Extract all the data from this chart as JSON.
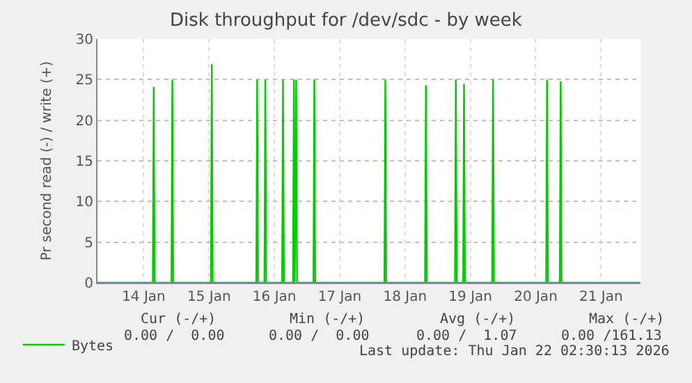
{
  "chart_data": {
    "type": "line",
    "title": "Disk throughput for /dev/sdc - by week",
    "ylabel": "Pr second read (-) / write (+)",
    "x": [
      "2026-01-13T19:00",
      "2026-01-14T15:20",
      "2026-01-14T15:40",
      "2026-01-14T16:00",
      "2026-01-14T22:10",
      "2026-01-14T22:30",
      "2026-01-14T22:50",
      "2026-01-15T12:40",
      "2026-01-15T13:00",
      "2026-01-15T13:20",
      "2026-01-16T05:20",
      "2026-01-16T05:40",
      "2026-01-16T06:00",
      "2026-01-16T08:20",
      "2026-01-16T08:40",
      "2026-01-16T09:00",
      "2026-01-16T14:50",
      "2026-01-16T15:10",
      "2026-01-16T15:30",
      "2026-01-16T18:50",
      "2026-01-16T19:10",
      "2026-01-16T19:30",
      "2026-01-16T20:00",
      "2026-01-16T20:20",
      "2026-01-17T02:20",
      "2026-01-17T02:40",
      "2026-01-17T03:00",
      "2026-01-18T04:25",
      "2026-01-18T04:45",
      "2026-01-18T05:05",
      "2026-01-18T19:20",
      "2026-01-18T19:40",
      "2026-01-18T20:00",
      "2026-01-19T06:20",
      "2026-01-19T06:40",
      "2026-01-19T07:00",
      "2026-01-19T09:20",
      "2026-01-19T09:40",
      "2026-01-19T10:00",
      "2026-01-19T20:00",
      "2026-01-19T20:20",
      "2026-01-19T20:40",
      "2026-01-20T15:50",
      "2026-01-20T16:10",
      "2026-01-20T16:30",
      "2026-01-20T20:50",
      "2026-01-20T21:10",
      "2026-01-20T21:30",
      "2026-01-22T02:30"
    ],
    "series": [
      {
        "name": "Bytes",
        "color": "#00cc00",
        "values": [
          0,
          0,
          24.1,
          0,
          0,
          25,
          0,
          0,
          26.9,
          0,
          0,
          25,
          0,
          0,
          25,
          0,
          0,
          25,
          0,
          0,
          25,
          0,
          25,
          0,
          0,
          25,
          0,
          0,
          25,
          0,
          0,
          24.3,
          0,
          0,
          25,
          0,
          0,
          24.5,
          0,
          0,
          25,
          0,
          0,
          25,
          0,
          0,
          24.8,
          0,
          0
        ]
      }
    ],
    "xlim": [
      "2026-01-13T19:00",
      "2026-01-22T02:30"
    ],
    "xticks": [
      {
        "value": "2026-01-14T12:00",
        "label": "14 Jan"
      },
      {
        "value": "2026-01-15T12:00",
        "label": "15 Jan"
      },
      {
        "value": "2026-01-16T12:00",
        "label": "16 Jan"
      },
      {
        "value": "2026-01-17T12:00",
        "label": "17 Jan"
      },
      {
        "value": "2026-01-18T12:00",
        "label": "18 Jan"
      },
      {
        "value": "2026-01-19T12:00",
        "label": "19 Jan"
      },
      {
        "value": "2026-01-20T12:00",
        "label": "20 Jan"
      },
      {
        "value": "2026-01-21T12:00",
        "label": "21 Jan"
      }
    ],
    "ylim": [
      0,
      30
    ],
    "yticks": [
      0,
      5,
      10,
      15,
      20,
      25,
      30
    ],
    "grid": true,
    "legend": "bottom left",
    "marker": "none",
    "line_style": "solid",
    "annotations": [
      "Cur (-/+)",
      "Min (-/+)",
      "Avg (-/+)",
      "Max (-/+)",
      "0.00 /  0.00",
      "0.00 /  0.00",
      "0.00 /  1.07",
      "0.00 /161.13",
      "Last update: Thu Jan 22 02:30:13 2026"
    ]
  }
}
